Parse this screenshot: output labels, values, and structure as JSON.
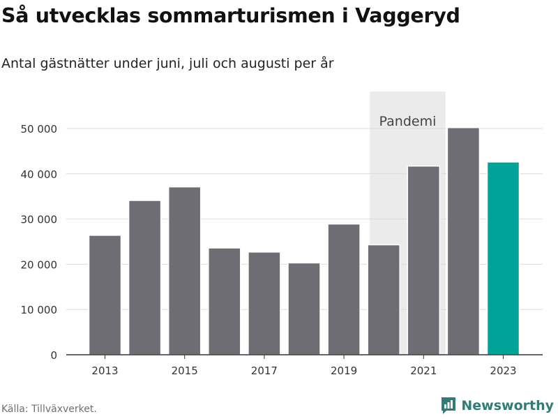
{
  "title": "Så utvecklas sommarturismen i Vaggeryd",
  "subtitle": "Antal gästnätter under juni, juli och augusti per år",
  "source": "Källa: Tillväxverket.",
  "brand": "Newsworthy",
  "colors": {
    "bar": "#6e6d73",
    "highlight": "#00a398",
    "band": "#ebebeb",
    "grid": "#dcdcdc",
    "axis": "#333333",
    "brand": "#2f7d74"
  },
  "chart_data": {
    "type": "bar",
    "categories": [
      "2013",
      "2014",
      "2015",
      "2016",
      "2017",
      "2018",
      "2019",
      "2020",
      "2021",
      "2022",
      "2023"
    ],
    "values": [
      26400,
      34100,
      37100,
      23600,
      22700,
      20300,
      28900,
      24300,
      41700,
      50200,
      42600
    ],
    "highlight": "2023",
    "xticks": [
      "2013",
      "2015",
      "2017",
      "2019",
      "2021",
      "2023"
    ],
    "yticks": [
      0,
      10000,
      20000,
      30000,
      40000,
      50000
    ],
    "ytick_labels": [
      "0",
      "10 000",
      "20 000",
      "30 000",
      "40 000",
      "50 000"
    ],
    "ylim": [
      0,
      50000
    ],
    "grid": true,
    "annotation": {
      "label": "Pandemi",
      "from": 2019.65,
      "to": 2021.55
    }
  }
}
